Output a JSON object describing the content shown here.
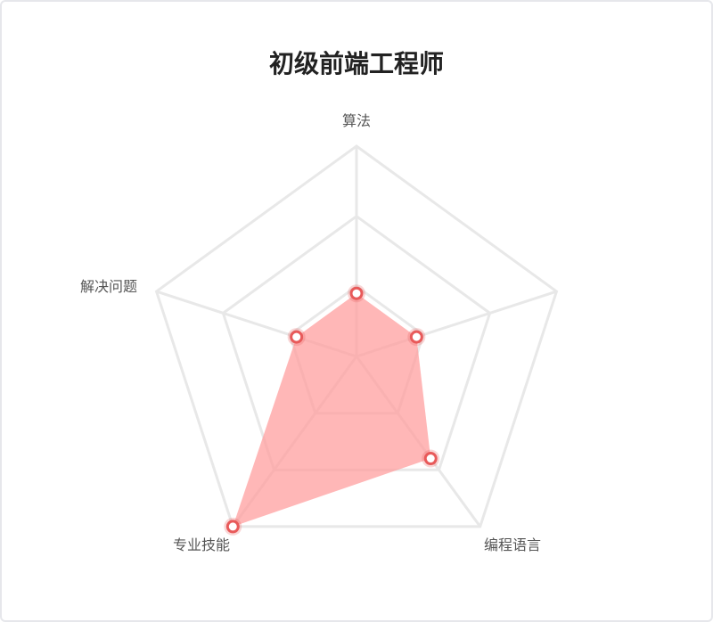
{
  "chart_data": {
    "type": "radar",
    "title": "初级前端工程师",
    "indicators": [
      "算法",
      "编程语言",
      "专业技能",
      "解决问题"
    ],
    "axis_labels": [
      "算法",
      "编程语言",
      "专业技能",
      "解决问题"
    ],
    "max": 100,
    "series": [
      {
        "values": [
          30,
          30,
          60,
          100,
          30
        ],
        "color": "#ff9f9f",
        "point_color": "#e85a5a"
      }
    ]
  }
}
